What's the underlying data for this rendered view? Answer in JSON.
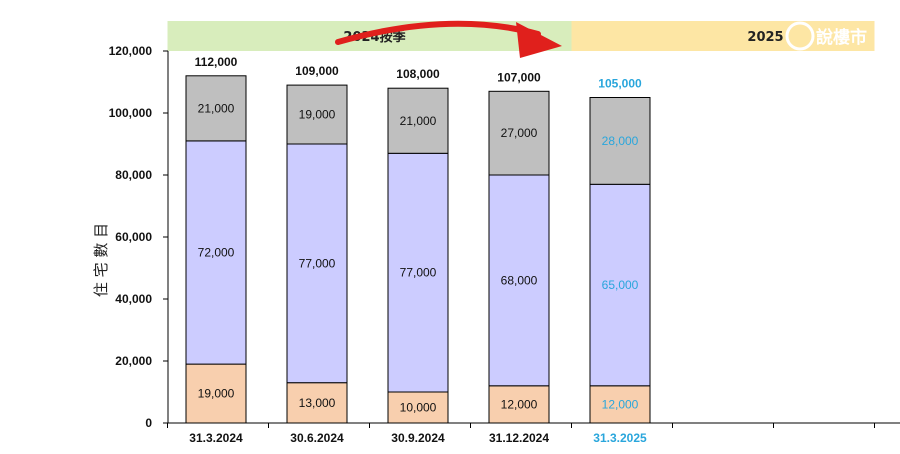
{
  "chart_data": {
    "type": "bar",
    "stacked": true,
    "ylabel": "住 宅 數 目",
    "ylim": [
      0,
      120000
    ],
    "yticks": [
      0,
      20000,
      40000,
      60000,
      80000,
      100000,
      120000
    ],
    "ytick_labels": [
      "0",
      "20,000",
      "40,000",
      "60,000",
      "80,000",
      "100,000",
      "120,000"
    ],
    "categories": [
      "31.3.2024",
      "30.6.2024",
      "30.9.2024",
      "31.12.2024",
      "31.3.2025"
    ],
    "empty_slots": 2,
    "series": [
      {
        "values": [
          19000,
          13000,
          10000,
          12000,
          12000
        ],
        "labels": [
          "19,000",
          "13,000",
          "10,000",
          "12,000",
          "12,000"
        ],
        "color": "#f8cfae"
      },
      {
        "values": [
          72000,
          77000,
          77000,
          68000,
          65000
        ],
        "labels": [
          "72,000",
          "77,000",
          "77,000",
          "68,000",
          "65,000"
        ],
        "color": "#ccccff"
      },
      {
        "values": [
          21000,
          19000,
          21000,
          27000,
          28000
        ],
        "labels": [
          "21,000",
          "19,000",
          "21,000",
          "27,000",
          "28,000"
        ],
        "color": "#bfbfbf"
      }
    ],
    "totals": [
      112000,
      109000,
      108000,
      107000,
      105000
    ],
    "total_labels": [
      "112,000",
      "109,000",
      "108,000",
      "107,000",
      "105,000"
    ],
    "highlight_index": 4,
    "highlight_color": "#29a6dc",
    "text_color": "#111111",
    "bar_edge_color": "#000000",
    "bands": [
      {
        "label": "2024按季",
        "color": "#d8edbc",
        "from_slot": 0,
        "to_slot": 4
      },
      {
        "label": "2025",
        "color": "#fde6a4",
        "from_slot": 4,
        "to_slot": 7
      }
    ],
    "annotation_arrow": {
      "color": "#e0201c"
    },
    "watermark": "說樓市"
  }
}
